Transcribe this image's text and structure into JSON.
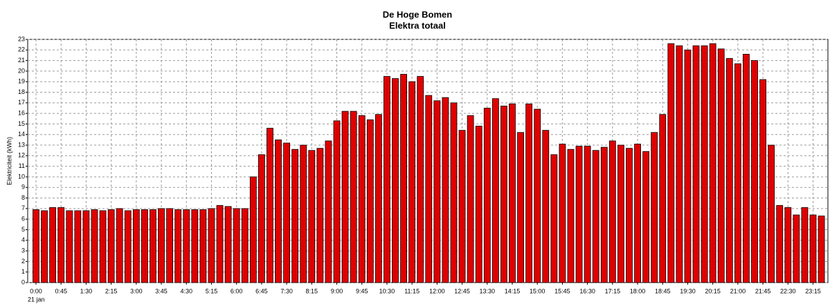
{
  "chart_data": {
    "type": "bar",
    "title": "De Hoge Bomen",
    "subtitle": "Elektra totaal",
    "y_label": "Elektriciteit (kWh)",
    "date_label": "21 jan",
    "categories": [
      "0:00",
      null,
      null,
      "0:45",
      null,
      null,
      "1:30",
      null,
      null,
      "2:15",
      null,
      null,
      "3:00",
      null,
      null,
      "3:45",
      null,
      null,
      "4:30",
      null,
      null,
      "5:15",
      null,
      null,
      "6:00",
      null,
      null,
      "6:45",
      null,
      null,
      "7:30",
      null,
      null,
      "8:15",
      null,
      null,
      "9:00",
      null,
      null,
      "9:45",
      null,
      null,
      "10:30",
      null,
      null,
      "11:15",
      null,
      null,
      "12:00",
      null,
      null,
      "12:45",
      null,
      null,
      "13:30",
      null,
      null,
      "14:15",
      null,
      null,
      "15:00",
      null,
      null,
      "15:45",
      null,
      null,
      "16:30",
      null,
      null,
      "17:15",
      null,
      null,
      "18:00",
      null,
      null,
      "18:45",
      null,
      null,
      "19:30",
      null,
      null,
      "20:15",
      null,
      null,
      "21:00",
      null,
      null,
      "21:45",
      null,
      null,
      "22:30",
      null,
      null,
      "23:15",
      null
    ],
    "values": [
      6.9,
      6.8,
      7.1,
      7.1,
      6.8,
      6.8,
      6.8,
      6.9,
      6.8,
      6.9,
      7.0,
      6.8,
      6.9,
      6.9,
      6.9,
      7.0,
      7.0,
      6.9,
      6.9,
      6.9,
      6.9,
      7.0,
      7.3,
      7.2,
      7.0,
      7.0,
      10.0,
      12.1,
      14.6,
      13.5,
      13.2,
      12.6,
      13.0,
      12.5,
      12.7,
      13.4,
      15.3,
      16.2,
      16.2,
      15.8,
      15.4,
      15.9,
      19.5,
      19.3,
      19.7,
      19.0,
      19.5,
      17.7,
      17.2,
      17.5,
      17.0,
      14.4,
      15.8,
      14.8,
      16.5,
      17.4,
      16.7,
      16.9,
      14.2,
      16.9,
      16.4,
      14.4,
      12.1,
      13.1,
      12.6,
      12.9,
      12.9,
      12.5,
      12.8,
      13.4,
      13.0,
      12.7,
      13.1,
      12.4,
      14.2,
      15.9,
      22.6,
      22.4,
      22.0,
      22.4,
      22.4,
      22.6,
      22.1,
      21.2,
      20.7,
      21.6,
      21.0,
      19.2,
      13.0,
      7.3,
      7.1,
      6.4,
      7.1,
      6.4,
      6.3
    ],
    "color": "#e00000",
    "ylim": [
      0,
      23
    ],
    "yticks": [
      0,
      1,
      2,
      3,
      4,
      5,
      6,
      7,
      8,
      9,
      10,
      11,
      12,
      13,
      14,
      15,
      16,
      17,
      18,
      19,
      20,
      21,
      22,
      23
    ],
    "grid": true
  }
}
